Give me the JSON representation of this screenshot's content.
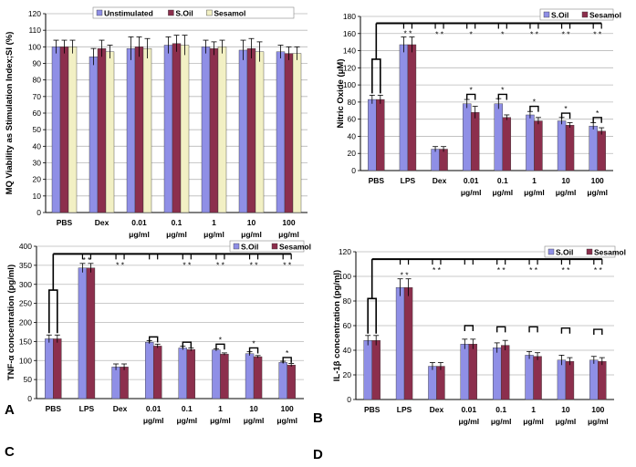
{
  "colors": {
    "series": [
      "#8f8fe6",
      "#8c2f4d",
      "#f2f0c4"
    ],
    "grid": "#b9b9b9"
  },
  "chart_data": [
    {
      "panel": "A",
      "type": "bar",
      "ylabel": "MQ Viability as Stimulation Index;SI (%)",
      "ylim": [
        0,
        120
      ],
      "yticks": [
        0,
        10,
        20,
        30,
        40,
        50,
        60,
        70,
        80,
        90,
        100,
        110,
        120
      ],
      "ytick_labels": [
        "0",
        "10",
        "20",
        "30",
        "40",
        "50",
        "60",
        "70",
        "80",
        "90",
        "100",
        "110",
        "120"
      ],
      "legend_pos": "top",
      "categories": [
        {
          "l1": "PBS",
          "l2": ""
        },
        {
          "l1": "Dex",
          "l2": ""
        },
        {
          "l1": "0.01",
          "l2": "μg/ml"
        },
        {
          "l1": "0.1",
          "l2": "μg/ml"
        },
        {
          "l1": "1",
          "l2": "μg/ml"
        },
        {
          "l1": "10",
          "l2": "μg/ml"
        },
        {
          "l1": "100",
          "l2": "μg/ml"
        }
      ],
      "series": [
        {
          "name": "Unstimulated",
          "values": [
            100,
            94,
            99,
            101,
            100,
            98,
            97
          ],
          "err": [
            4,
            5,
            7,
            5,
            4,
            6,
            4
          ]
        },
        {
          "name": "S.Oil",
          "values": [
            100,
            99,
            100,
            102,
            99,
            99,
            96
          ],
          "err": [
            4,
            5,
            6,
            5,
            4,
            6,
            4
          ]
        },
        {
          "name": "Sesamol",
          "values": [
            100,
            97,
            99,
            101,
            100,
            97,
            96
          ],
          "err": [
            4,
            4,
            6,
            6,
            4,
            6,
            4
          ]
        }
      ],
      "hbrackets": [],
      "pairmarks": [],
      "topmarks": []
    },
    {
      "panel": "B",
      "type": "bar",
      "ylabel": "Nitric Oxide (μM)",
      "ylim": [
        0,
        180
      ],
      "yticks": [
        0,
        20,
        40,
        60,
        80,
        100,
        120,
        140,
        160,
        180
      ],
      "ytick_labels": [
        "0",
        "20",
        "40",
        "60",
        "80",
        "100",
        "120",
        "140",
        "160",
        "180"
      ],
      "legend_pos": "top-right",
      "categories": [
        {
          "l1": "PBS",
          "l2": ""
        },
        {
          "l1": "LPS",
          "l2": ""
        },
        {
          "l1": "Dex",
          "l2": ""
        },
        {
          "l1": "0.01",
          "l2": "μg/ml"
        },
        {
          "l1": "0.1",
          "l2": "μg/ml"
        },
        {
          "l1": "1",
          "l2": "μg/ml"
        },
        {
          "l1": "10",
          "l2": "μg/ml"
        },
        {
          "l1": "100",
          "l2": "μg/ml"
        }
      ],
      "series": [
        {
          "name": "S.Oil",
          "values": [
            83,
            147,
            25,
            78,
            78,
            65,
            58,
            52
          ],
          "err": [
            5,
            9,
            3,
            5,
            6,
            4,
            4,
            4
          ]
        },
        {
          "name": "Sesamol",
          "values": [
            83,
            147,
            25,
            68,
            62,
            58,
            53,
            46
          ],
          "err": [
            5,
            9,
            3,
            7,
            3,
            4,
            3,
            4
          ]
        }
      ],
      "hbrackets": [
        [
          0,
          130
        ],
        [
          3,
          89
        ],
        [
          4,
          89
        ],
        [
          5,
          75
        ],
        [
          6,
          67
        ],
        [
          7,
          62
        ]
      ],
      "hbracket_labels": [
        "",
        "*",
        "*",
        "*",
        "*",
        "*"
      ],
      "pairmarks": [
        1,
        3,
        4,
        5,
        6,
        7
      ],
      "pairmark_text": "* *",
      "topmarks": [
        1,
        2,
        3,
        4,
        5,
        6,
        7
      ],
      "topmark_labels": [
        "",
        "* *",
        "*",
        "*",
        "* *",
        "* *",
        "* *"
      ],
      "top_y": 172
    },
    {
      "panel": "C",
      "type": "bar",
      "ylabel": "TNF-α concentration (pg/ml)",
      "ylim": [
        0,
        400
      ],
      "yticks": [
        0,
        50,
        100,
        150,
        200,
        250,
        300,
        350,
        400
      ],
      "ytick_labels": [
        "0",
        "50",
        "100",
        "150",
        "200",
        "250",
        "300",
        "350",
        "400"
      ],
      "legend_pos": "top-right",
      "categories": [
        {
          "l1": "PBS",
          "l2": ""
        },
        {
          "l1": "LPS",
          "l2": ""
        },
        {
          "l1": "Dex",
          "l2": ""
        },
        {
          "l1": "0.01",
          "l2": "μg/ml"
        },
        {
          "l1": "0.1",
          "l2": "μg/ml"
        },
        {
          "l1": "1",
          "l2": "μg/ml"
        },
        {
          "l1": "10",
          "l2": "μg/ml"
        },
        {
          "l1": "100",
          "l2": "μg/ml"
        }
      ],
      "series": [
        {
          "name": "S.Oil",
          "values": [
            157,
            343,
            83,
            148,
            133,
            128,
            118,
            95
          ],
          "err": [
            10,
            12,
            8,
            4,
            5,
            3,
            5,
            3
          ]
        },
        {
          "name": "Sesamol",
          "values": [
            157,
            343,
            83,
            138,
            129,
            117,
            110,
            88
          ],
          "err": [
            10,
            12,
            8,
            5,
            4,
            3,
            3,
            4
          ]
        }
      ],
      "hbrackets": [
        [
          0,
          285
        ],
        [
          3,
          162
        ],
        [
          4,
          148
        ],
        [
          5,
          143
        ],
        [
          6,
          133
        ],
        [
          7,
          108
        ]
      ],
      "hbracket_labels": [
        "",
        "",
        "",
        "*",
        "*",
        "*"
      ],
      "pairmarks": [
        1
      ],
      "pairmark_text": "* *",
      "topmarks": [
        1,
        2,
        3,
        4,
        5,
        6,
        7
      ],
      "topmark_labels": [
        "",
        "* *",
        "",
        "* *",
        "* *",
        "* *",
        "* *"
      ],
      "top_y": 380
    },
    {
      "panel": "D",
      "type": "bar",
      "ylabel": "IL-1β concentration (pg/ml)",
      "ylim": [
        0,
        120
      ],
      "yticks": [
        0,
        20,
        40,
        60,
        80,
        100,
        120
      ],
      "ytick_labels": [
        "0",
        "20",
        "40",
        "60",
        "80",
        "100",
        "120"
      ],
      "legend_pos": "top-right",
      "categories": [
        {
          "l1": "PBS",
          "l2": ""
        },
        {
          "l1": "LPS",
          "l2": ""
        },
        {
          "l1": "Dex",
          "l2": ""
        },
        {
          "l1": "0.01",
          "l2": "μg/ml"
        },
        {
          "l1": "0.1",
          "l2": "μg/ml"
        },
        {
          "l1": "1",
          "l2": "μg/ml"
        },
        {
          "l1": "10",
          "l2": "μg/ml"
        },
        {
          "l1": "100",
          "l2": "μg/ml"
        }
      ],
      "series": [
        {
          "name": "S.Oil",
          "values": [
            48,
            91,
            27,
            45,
            42,
            36,
            32,
            32
          ],
          "err": [
            4,
            7,
            3,
            4,
            4,
            3,
            4,
            3
          ]
        },
        {
          "name": "Sesamol",
          "values": [
            48,
            91,
            27,
            45,
            44,
            35,
            31,
            31
          ],
          "err": [
            4,
            7,
            3,
            4,
            4,
            3,
            3,
            3
          ]
        }
      ],
      "hbrackets": [
        [
          0,
          82
        ],
        [
          3,
          60
        ],
        [
          4,
          59
        ],
        [
          5,
          59
        ],
        [
          6,
          58
        ],
        [
          7,
          57
        ]
      ],
      "hbracket_labels": [
        "",
        "",
        "",
        "",
        "",
        ""
      ],
      "pairmarks": [
        1
      ],
      "pairmark_text": "* *",
      "topmarks": [
        1,
        2,
        3,
        4,
        5,
        6,
        7
      ],
      "topmark_labels": [
        "",
        "* *",
        "",
        "* *",
        "* *",
        "* *",
        "* *"
      ],
      "top_y": 114
    }
  ]
}
